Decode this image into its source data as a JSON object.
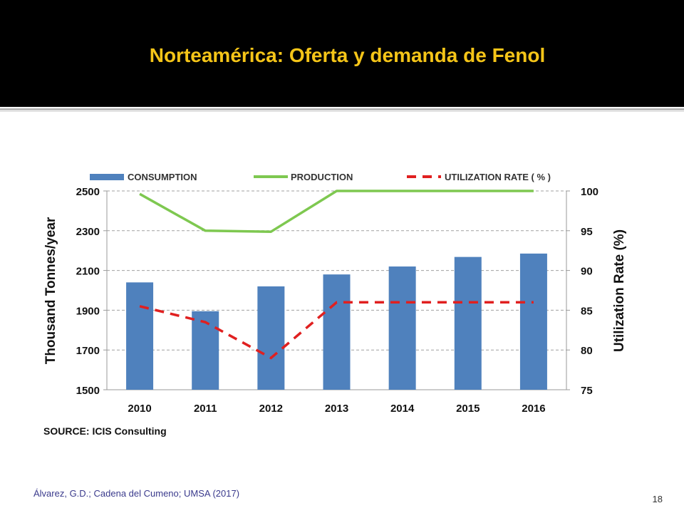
{
  "slide": {
    "title": "Norteamérica: Oferta y demanda de Fenol",
    "citation": "Álvarez, G.D.; Cadena del Cumeno; UMSA (2017)",
    "page_number": "18"
  },
  "colors": {
    "header_bg": "#000000",
    "title": "#f5c518",
    "consumption": "#4f81bd",
    "production": "#7ec850",
    "utilization": "#e02020"
  },
  "chart_data": {
    "type": "bar",
    "categories": [
      "2010",
      "2011",
      "2012",
      "2013",
      "2014",
      "2015",
      "2016"
    ],
    "series": [
      {
        "name": "CONSUMPTION",
        "type": "bar",
        "axis": "left",
        "values": [
          2040,
          1895,
          2020,
          2080,
          2120,
          2168,
          2185
        ]
      },
      {
        "name": "PRODUCTION",
        "type": "line",
        "axis": "left",
        "values": [
          2485,
          2300,
          2295,
          2500,
          2500,
          2500,
          2500
        ]
      },
      {
        "name": "UTILIZATION RATE ( % )",
        "type": "line",
        "style": "dashed",
        "axis": "right",
        "values": [
          85.5,
          83.5,
          79,
          86,
          86,
          86,
          86
        ]
      }
    ],
    "ylabel": "Thousand Tonnes/year",
    "y2label": "Utilization Rate (%)",
    "ylim": [
      1500,
      2500
    ],
    "y2lim": [
      75,
      100
    ],
    "yticks": [
      "1500",
      "1700",
      "1900",
      "2100",
      "2300",
      "2500"
    ],
    "y2ticks": [
      "75",
      "80",
      "85",
      "90",
      "95",
      "100"
    ],
    "source": "SOURCE: ICIS Consulting",
    "grid": "horizontal dashed",
    "legend_position": "top"
  }
}
